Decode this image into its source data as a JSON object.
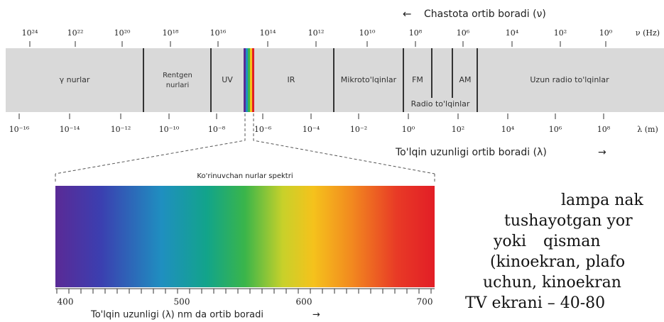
{
  "spectrum": {
    "frequency_label": "Chastota ortib boradi (ν)",
    "frequency_ticks": [
      "10²⁴",
      "10²²",
      "10²⁰",
      "10¹⁸",
      "10¹⁶",
      "10¹⁴",
      "10¹²",
      "10¹⁰",
      "10⁸",
      "10⁶",
      "10⁴",
      "10²",
      "10⁰",
      "ν (Hz)"
    ],
    "wavelength_ticks": [
      "10⁻¹⁶",
      "10⁻¹⁴",
      "10⁻¹²",
      "10⁻¹⁰",
      "10⁻⁸",
      "10⁻⁶",
      "10⁻⁴",
      "10⁻²",
      "10⁰",
      "10²",
      "10⁴",
      "10⁶",
      "10⁸",
      "λ (m)"
    ],
    "wavelength_label": "To'lqin uzunligi ortib boradi (λ)",
    "bands": [
      "γ nurlar",
      "Rentgen",
      "nurlari",
      "UV",
      "IR",
      "Mikroto'lqinlar",
      "FM",
      "AM",
      "Radio to'lqinlar",
      "Uzun radio to'lqinlar"
    ]
  },
  "visible": {
    "title": "Ko'rinuvchan nurlar spektri",
    "ticks": [
      "400",
      "500",
      "600",
      "700"
    ],
    "axis_label": "To'lqin uzunligi (λ) nm da ortib boradi"
  },
  "text_lines": [
    "lampa nak",
    "tushayotgan yor",
    "yoki",
    "qisman",
    "(kinoekran, plafo",
    "uchun, kinoekran",
    "TV ekrani – 40-80"
  ]
}
